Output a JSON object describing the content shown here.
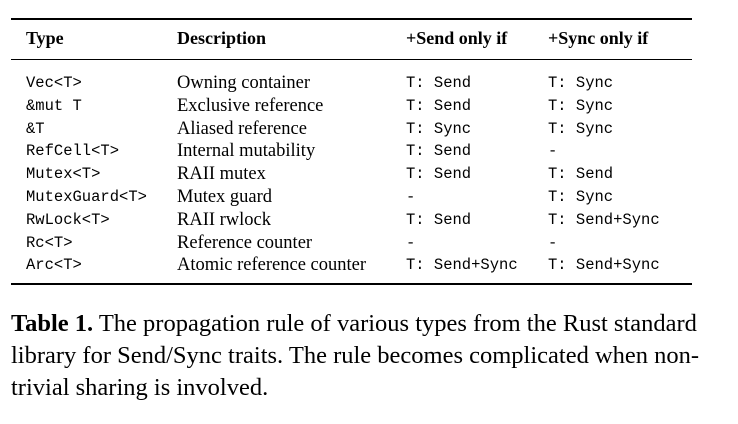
{
  "table": {
    "headers": [
      "Type",
      "Description",
      "+Send only if",
      "+Sync only if"
    ],
    "rows": [
      [
        "Vec<T>",
        "Owning container",
        "T: Send",
        "T: Sync"
      ],
      [
        "&mut T",
        "Exclusive reference",
        "T: Send",
        "T: Sync"
      ],
      [
        "&T",
        "Aliased reference",
        "T: Sync",
        "T: Sync"
      ],
      [
        "RefCell<T>",
        "Internal mutability",
        "T: Send",
        "-"
      ],
      [
        "Mutex<T>",
        "RAII mutex",
        "T: Send",
        "T: Send"
      ],
      [
        "MutexGuard<T>",
        "Mutex guard",
        "-",
        "T: Sync"
      ],
      [
        "RwLock<T>",
        "RAII rwlock",
        "T: Send",
        "T: Send+Sync"
      ],
      [
        "Rc<T>",
        "Reference counter",
        "-",
        "-"
      ],
      [
        "Arc<T>",
        "Atomic reference counter",
        "T: Send+Sync",
        "T: Send+Sync"
      ]
    ]
  },
  "caption": {
    "label": "Table 1.",
    "text": "The propagation rule of various types from the Rust standard library for Send/Sync traits. The rule becomes complicated when non-trivial sharing is involved."
  }
}
